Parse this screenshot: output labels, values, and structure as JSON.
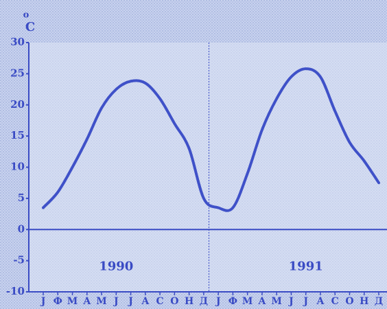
{
  "chart_data": {
    "type": "line",
    "y_label_superscript": "o",
    "y_label": "C",
    "categories": [
      "Ј",
      "Ф",
      "М",
      "А",
      "М",
      "Ј",
      "Ј",
      "А",
      "С",
      "О",
      "Н",
      "Д",
      "Ј",
      "Ф",
      "М",
      "А",
      "М",
      "Ј",
      "Ј",
      "А",
      "С",
      "О",
      "Н",
      "Д"
    ],
    "series": [
      {
        "name": "temperature",
        "color": "#3f51c8",
        "values": [
          3.5,
          6,
          10,
          14.5,
          19.5,
          22.5,
          23.8,
          23.5,
          21,
          17,
          13,
          5,
          3.5,
          3.5,
          9,
          16,
          21,
          24.5,
          25.8,
          24.5,
          19,
          14,
          11,
          7.5
        ]
      }
    ],
    "ylim": [
      -10,
      30
    ],
    "yticks": [
      -10,
      -5,
      0,
      5,
      10,
      15,
      20,
      25,
      30
    ],
    "annotations": [
      {
        "text": "1990",
        "category": 5
      },
      {
        "text": "1991",
        "category": 18
      }
    ],
    "year_divider": true
  }
}
